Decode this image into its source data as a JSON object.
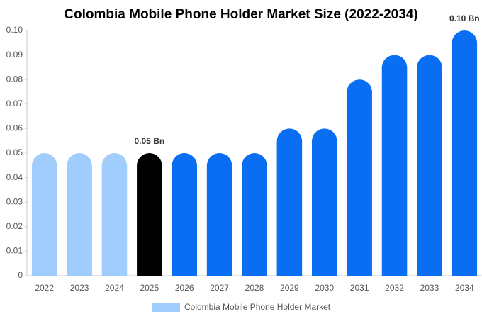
{
  "chart_data": {
    "type": "bar",
    "title": "Colombia Mobile Phone Holder Market Size (2022-2034)",
    "categories": [
      "2022",
      "2023",
      "2024",
      "2025",
      "2026",
      "2027",
      "2028",
      "2029",
      "2030",
      "2031",
      "2032",
      "2033",
      "2034"
    ],
    "series": [
      {
        "name": "Colombia Mobile Phone Holder Market",
        "color": "#a0cdfb",
        "values": [
          0.05,
          0.05,
          0.05,
          0.05,
          0.05,
          0.05,
          0.05,
          0.06,
          0.06,
          0.08,
          0.09,
          0.09,
          0.1
        ],
        "value_labels": [
          null,
          null,
          null,
          "0.05 Bn",
          null,
          null,
          null,
          null,
          null,
          null,
          null,
          null,
          "0.10 Bn"
        ],
        "colors": [
          "#a0cdfb",
          "#a0cdfb",
          "#a0cdfb",
          "#000000",
          "#0a6ef2",
          "#0a6ef2",
          "#0a6ef2",
          "#0a6ef2",
          "#0a6ef2",
          "#0a6ef2",
          "#0a6ef2",
          "#0a6ef2",
          "#0a6ef2"
        ]
      }
    ],
    "ylim": [
      0,
      0.1
    ],
    "yticks": [
      0,
      0.01,
      0.02,
      0.03,
      0.04,
      0.05,
      0.06,
      0.07,
      0.08,
      0.09,
      {
        "value": 0.1,
        "label": "0.10"
      }
    ],
    "grid": false
  }
}
